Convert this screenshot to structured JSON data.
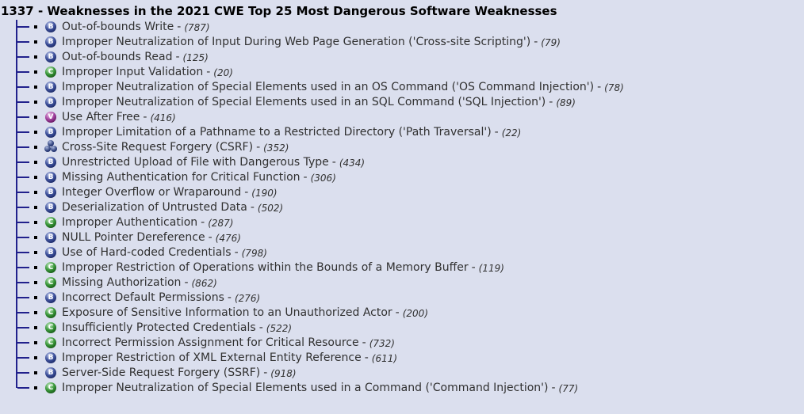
{
  "page": {
    "title": "1337 - Weaknesses in the 2021 CWE Top 25 Most Dangerous Software Weaknesses",
    "background_color": "#dbdfee",
    "tree_line_color": "#21218c"
  },
  "icons": {
    "base": {
      "letter": "B",
      "color": "#13205e",
      "meaning": "Base weakness"
    },
    "class": {
      "letter": "C",
      "color": "#0e4f0e",
      "meaning": "Class weakness"
    },
    "variant": {
      "letter": "V",
      "color": "#5c0f59",
      "meaning": "Variant weakness"
    },
    "composite": {
      "letter": "",
      "color": "#13205e",
      "meaning": "Composite weakness"
    }
  },
  "tree": {
    "separator": "-",
    "items": [
      {
        "type": "base",
        "name": "Out-of-bounds Write",
        "id": "(787)"
      },
      {
        "type": "base",
        "name": "Improper Neutralization of Input During Web Page Generation ('Cross-site Scripting')",
        "id": "(79)"
      },
      {
        "type": "base",
        "name": "Out-of-bounds Read",
        "id": "(125)"
      },
      {
        "type": "class",
        "name": "Improper Input Validation",
        "id": "(20)"
      },
      {
        "type": "base",
        "name": "Improper Neutralization of Special Elements used in an OS Command ('OS Command Injection')",
        "id": "(78)"
      },
      {
        "type": "base",
        "name": "Improper Neutralization of Special Elements used in an SQL Command ('SQL Injection')",
        "id": "(89)"
      },
      {
        "type": "variant",
        "name": "Use After Free",
        "id": "(416)"
      },
      {
        "type": "base",
        "name": "Improper Limitation of a Pathname to a Restricted Directory ('Path Traversal')",
        "id": "(22)"
      },
      {
        "type": "composite",
        "name": "Cross-Site Request Forgery (CSRF)",
        "id": "(352)"
      },
      {
        "type": "base",
        "name": "Unrestricted Upload of File with Dangerous Type",
        "id": "(434)"
      },
      {
        "type": "base",
        "name": "Missing Authentication for Critical Function",
        "id": "(306)"
      },
      {
        "type": "base",
        "name": "Integer Overflow or Wraparound",
        "id": "(190)"
      },
      {
        "type": "base",
        "name": "Deserialization of Untrusted Data",
        "id": "(502)"
      },
      {
        "type": "class",
        "name": "Improper Authentication",
        "id": "(287)"
      },
      {
        "type": "base",
        "name": "NULL Pointer Dereference",
        "id": "(476)"
      },
      {
        "type": "base",
        "name": "Use of Hard-coded Credentials",
        "id": "(798)"
      },
      {
        "type": "class",
        "name": "Improper Restriction of Operations within the Bounds of a Memory Buffer",
        "id": "(119)"
      },
      {
        "type": "class",
        "name": "Missing Authorization",
        "id": "(862)"
      },
      {
        "type": "base",
        "name": "Incorrect Default Permissions",
        "id": "(276)"
      },
      {
        "type": "class",
        "name": "Exposure of Sensitive Information to an Unauthorized Actor",
        "id": "(200)"
      },
      {
        "type": "class",
        "name": "Insufficiently Protected Credentials",
        "id": "(522)"
      },
      {
        "type": "class",
        "name": "Incorrect Permission Assignment for Critical Resource",
        "id": "(732)"
      },
      {
        "type": "base",
        "name": "Improper Restriction of XML External Entity Reference",
        "id": "(611)"
      },
      {
        "type": "base",
        "name": "Server-Side Request Forgery (SSRF)",
        "id": "(918)"
      },
      {
        "type": "class",
        "name": "Improper Neutralization of Special Elements used in a Command ('Command Injection')",
        "id": "(77)"
      }
    ]
  }
}
